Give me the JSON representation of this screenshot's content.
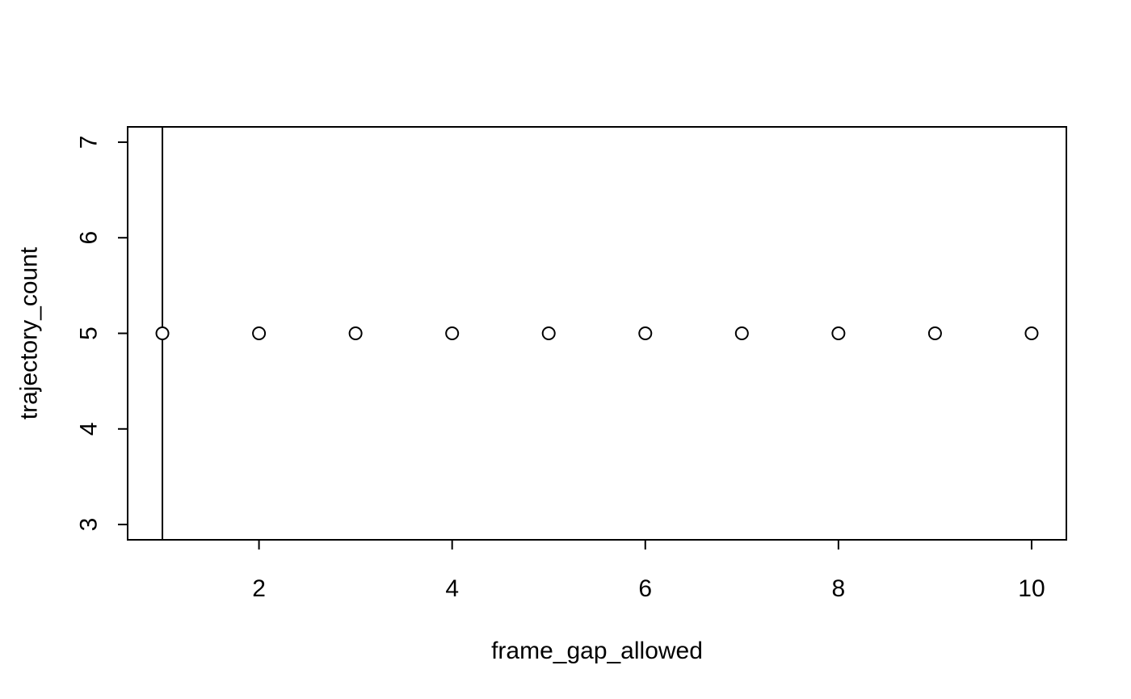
{
  "chart_data": {
    "type": "scatter",
    "xlabel": "frame_gap_allowed",
    "ylabel": "trajectory_count",
    "x": [
      1,
      2,
      3,
      4,
      5,
      6,
      7,
      8,
      9,
      10
    ],
    "y": [
      5,
      5,
      5,
      5,
      5,
      5,
      5,
      5,
      5,
      5
    ],
    "xlim": [
      0.64,
      10.36
    ],
    "ylim": [
      2.84,
      7.16
    ],
    "x_ticks": [
      2,
      4,
      6,
      8,
      10
    ],
    "y_ticks": [
      3,
      4,
      5,
      6,
      7
    ],
    "vertical_line_x": 1,
    "marker": "open-circle",
    "colors": {
      "stroke": "#000000",
      "background": "#ffffff"
    }
  }
}
